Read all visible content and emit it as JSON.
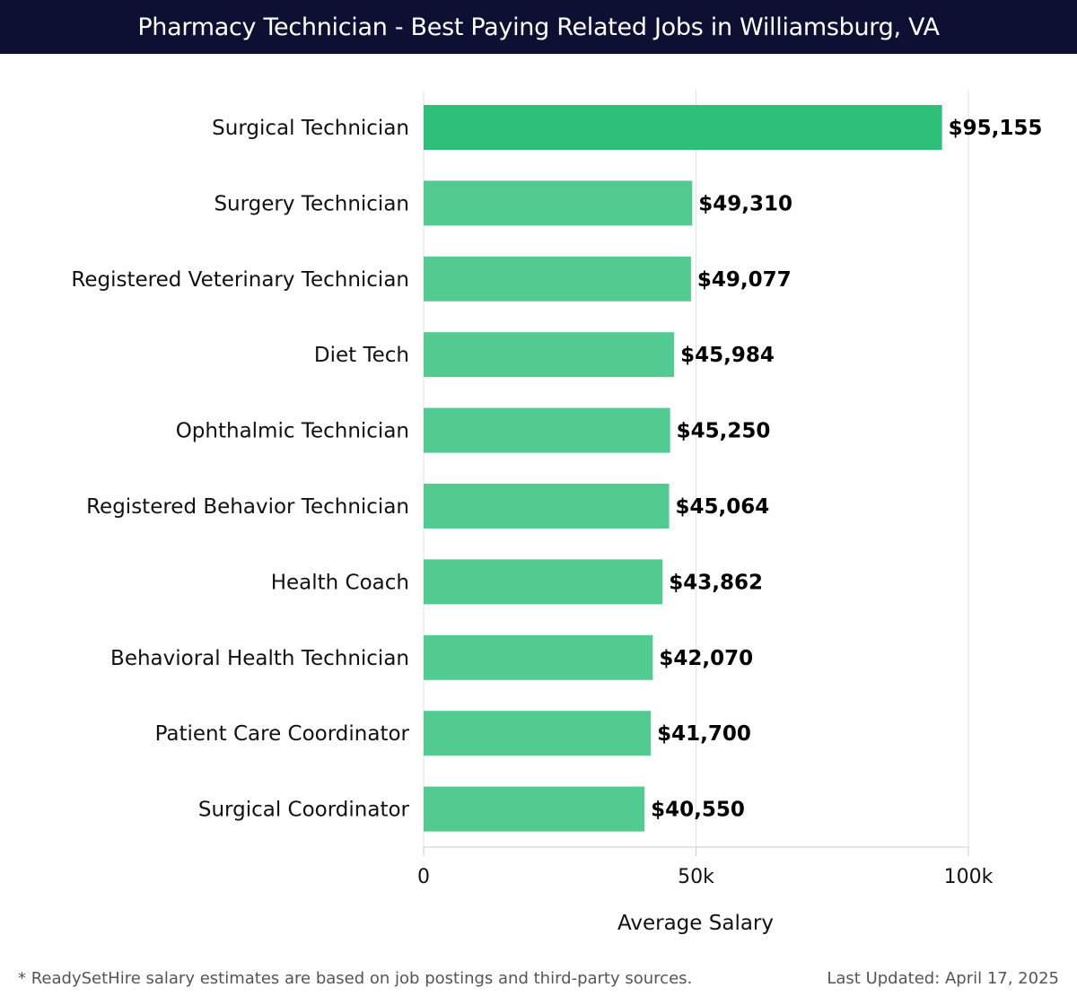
{
  "header": {
    "title": "Pharmacy Technician - Best Paying Related Jobs in Williamsburg, VA"
  },
  "chart_data": {
    "type": "bar",
    "orientation": "horizontal",
    "title": "Pharmacy Technician - Best Paying Related Jobs in Williamsburg, VA",
    "xlabel": "Average Salary",
    "ylabel": "",
    "xlim": [
      0,
      100000
    ],
    "xticks": [
      0,
      50000,
      100000
    ],
    "xtick_labels": [
      "0",
      "50k",
      "100k"
    ],
    "grid": true,
    "categories": [
      "Surgical Technician",
      "Surgery Technician",
      "Registered Veterinary Technician",
      "Diet Tech",
      "Ophthalmic Technician",
      "Registered Behavior Technician",
      "Health Coach",
      "Behavioral Health Technician",
      "Patient Care Coordinator",
      "Surgical Coordinator"
    ],
    "values": [
      95155,
      49310,
      49077,
      45984,
      45250,
      45064,
      43862,
      42070,
      41700,
      40550
    ],
    "value_labels": [
      "$95,155",
      "$49,310",
      "$49,077",
      "$45,984",
      "$45,250",
      "$45,064",
      "$43,862",
      "$42,070",
      "$41,700",
      "$40,550"
    ],
    "colors": {
      "top_bar": "#2ebf78",
      "other_bars": "#52cb91"
    }
  },
  "footer": {
    "note": "* ReadySetHire salary estimates are based on job postings and third-party sources.",
    "updated": "Last Updated: April 17, 2025"
  }
}
